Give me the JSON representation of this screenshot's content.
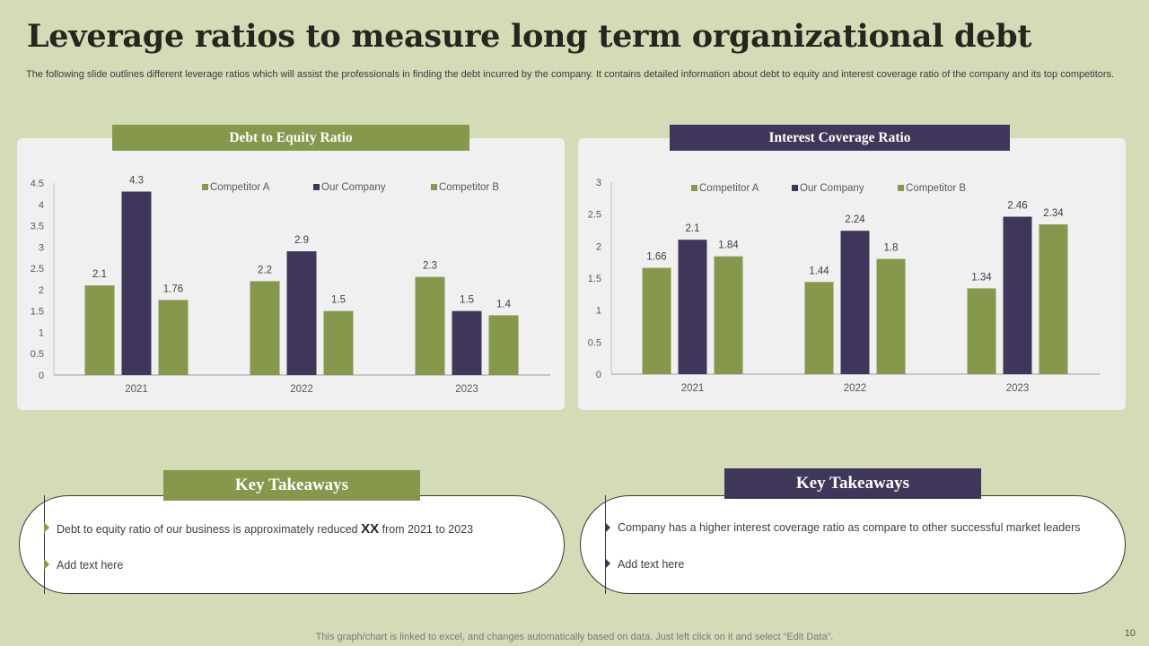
{
  "title": "Leverage ratios to measure long term organizational debt",
  "subtitle": "The following slide outlines different leverage ratios which will assist the professionals in finding the debt incurred by the company. It contains detailed information about debt to equity and interest coverage ratio of the company and its top competitors.",
  "colors": {
    "green": "#86984c",
    "purple": "#40365a",
    "background": "#d3dbb7",
    "panel": "#f0f0f0"
  },
  "chart_data": [
    {
      "type": "bar",
      "title": "Debt to Equity Ratio",
      "categories": [
        "2021",
        "2022",
        "2023"
      ],
      "series": [
        {
          "name": "Competitor A",
          "color": "#86984c",
          "values": [
            2.1,
            2.2,
            2.3
          ]
        },
        {
          "name": "Our Company",
          "color": "#40365a",
          "values": [
            4.3,
            2.9,
            1.5
          ]
        },
        {
          "name": "Competitor B",
          "color": "#86984c",
          "values": [
            1.76,
            1.5,
            1.4
          ]
        }
      ],
      "ylim": [
        0,
        4.5
      ],
      "yticks": [
        0,
        0.5,
        1,
        1.5,
        2,
        2.5,
        3,
        3.5,
        4,
        4.5
      ],
      "xlabel": "",
      "ylabel": "",
      "legend": "top"
    },
    {
      "type": "bar",
      "title": "Interest Coverage Ratio",
      "categories": [
        "2021",
        "2022",
        "2023"
      ],
      "series": [
        {
          "name": "Competitor A",
          "color": "#86984c",
          "values": [
            1.66,
            1.44,
            1.34
          ]
        },
        {
          "name": "Our Company",
          "color": "#40365a",
          "values": [
            2.1,
            2.24,
            2.46
          ]
        },
        {
          "name": "Competitor B",
          "color": "#86984c",
          "values": [
            1.84,
            1.8,
            2.34
          ]
        }
      ],
      "ylim": [
        0,
        3
      ],
      "yticks": [
        0,
        0.5,
        1,
        1.5,
        2,
        2.5,
        3
      ],
      "xlabel": "",
      "ylabel": "",
      "legend": "top"
    }
  ],
  "takeaways": {
    "left": {
      "header": "Key Takeaways",
      "item1_prefix": "Debt to equity ratio of our business is approximately reduced",
      "item1_highlight": "XX",
      "item1_suffix": "from 2021 to 2023",
      "item2": "Add text here"
    },
    "right": {
      "header": "Key Takeaways",
      "item1": "Company has a higher interest coverage  ratio as compare  to other successful market leaders",
      "item2": "Add text here"
    }
  },
  "footer": "This graph/chart is linked to excel,  and changes automatically based on data. Just left click on it and select “Edit Data”.",
  "page_number": "10"
}
